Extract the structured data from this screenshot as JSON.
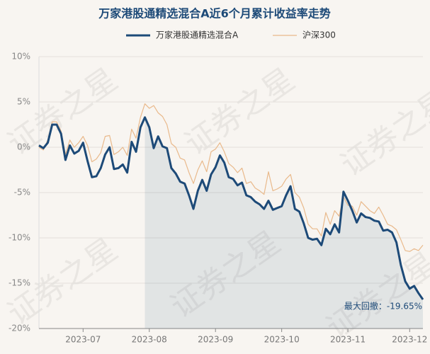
{
  "chart_data": {
    "type": "line",
    "title": "万家港股通精选混合A近6个月累计收益率走势",
    "watermark": "证券之星",
    "annotation": "最大回撤：-19.65%",
    "categories": [
      null,
      null,
      null,
      null,
      null,
      null,
      null,
      null,
      null,
      null,
      "2023-07",
      null,
      null,
      null,
      null,
      null,
      null,
      null,
      null,
      null,
      null,
      null,
      null,
      null,
      null,
      "2023-08",
      null,
      null,
      null,
      null,
      null,
      null,
      null,
      null,
      null,
      null,
      null,
      null,
      null,
      null,
      "2023-09",
      null,
      null,
      null,
      null,
      null,
      null,
      null,
      null,
      null,
      null,
      null,
      null,
      null,
      null,
      "2023-10",
      null,
      null,
      null,
      null,
      null,
      null,
      null,
      null,
      null,
      null,
      null,
      null,
      null,
      null,
      "2023-11",
      null,
      null,
      null,
      null,
      null,
      null,
      null,
      null,
      null,
      null,
      null,
      null,
      null,
      "2023-12",
      null,
      null,
      null
    ],
    "series": [
      {
        "name": "万家港股通精选混合A",
        "color": "#1d4a78",
        "values": [
          0.2,
          -0.1,
          0.5,
          2.5,
          2.5,
          1.5,
          -1.4,
          0.2,
          -0.7,
          -0.4,
          0.5,
          -1.5,
          -3.3,
          -3.2,
          -2.3,
          -0.8,
          0,
          -2.4,
          -2.3,
          -1.9,
          -2.8,
          0.6,
          -0.5,
          2.2,
          3.3,
          2.2,
          -0.1,
          1.2,
          0.1,
          -0.1,
          -2.3,
          -2.9,
          -3.8,
          -4.0,
          -5.3,
          -6.8,
          -4.8,
          -3.6,
          -4.8,
          -3.0,
          -2.2,
          -0.9,
          -1.7,
          -3.3,
          -3.5,
          -4.2,
          -3.9,
          -5.3,
          -5.5,
          -6.0,
          -6.3,
          -6.8,
          -5.9,
          -6.9,
          -6.7,
          -6.5,
          -5.3,
          -4.3,
          -6.8,
          -7.1,
          -8.4,
          -10.0,
          -10.2,
          -10.1,
          -10.8,
          -9.0,
          -9.6,
          -8.5,
          -9.4,
          -4.9,
          -5.9,
          -7.0,
          -8.3,
          -7.3,
          -7.7,
          -7.8,
          -8.1,
          -8.2,
          -9.2,
          -9.1,
          -9.4,
          -10.5,
          -13.0,
          -14.8,
          -15.6,
          -15.3,
          -16.1,
          -16.8
        ]
      },
      {
        "name": "沪深300",
        "color": "#e9b98b",
        "values": [
          0,
          -0.3,
          0.8,
          2.8,
          2.8,
          1.8,
          -0.8,
          0.8,
          0,
          0.5,
          1.2,
          0.2,
          -1.6,
          -1.3,
          -0.6,
          1.2,
          1.3,
          -0.8,
          -0.5,
          0,
          -0.9,
          2.0,
          1.0,
          3.3,
          4.8,
          4.3,
          4.6,
          3.8,
          3.4,
          2.5,
          0.4,
          0,
          -1.2,
          -1.4,
          -2.8,
          -4.0,
          -2.5,
          -1.5,
          -2.7,
          -0.5,
          -0.2,
          0.5,
          -0.5,
          -1.8,
          -2.2,
          -2.8,
          -2.3,
          -4.0,
          -3.8,
          -4.5,
          -4.8,
          -5.2,
          -2.7,
          -4.8,
          -4.6,
          -4.3,
          -3.5,
          -3.0,
          -5.0,
          -5.5,
          -6.7,
          -8.5,
          -9.0,
          -9.0,
          -9.8,
          -7.2,
          -8.5,
          -7.0,
          -7.6,
          -5.5,
          -6.4,
          -6.5,
          -7.5,
          -6.0,
          -6.5,
          -7.0,
          -7.3,
          -6.6,
          -7.5,
          -8.5,
          -8.7,
          -9.1,
          -10.2,
          -11.4,
          -11.5,
          -11.2,
          -11.4,
          -10.8
        ]
      }
    ],
    "ylim": [
      -20,
      10
    ],
    "yticks": [
      {
        "value": -20,
        "label": "-20%"
      },
      {
        "value": -15,
        "label": "-15%"
      },
      {
        "value": -10,
        "label": "-10%"
      },
      {
        "value": -5,
        "label": "-5%"
      },
      {
        "value": 0,
        "label": "0%"
      },
      {
        "value": 5,
        "label": "5%"
      },
      {
        "value": 10,
        "label": "10%"
      }
    ],
    "grid": true
  }
}
